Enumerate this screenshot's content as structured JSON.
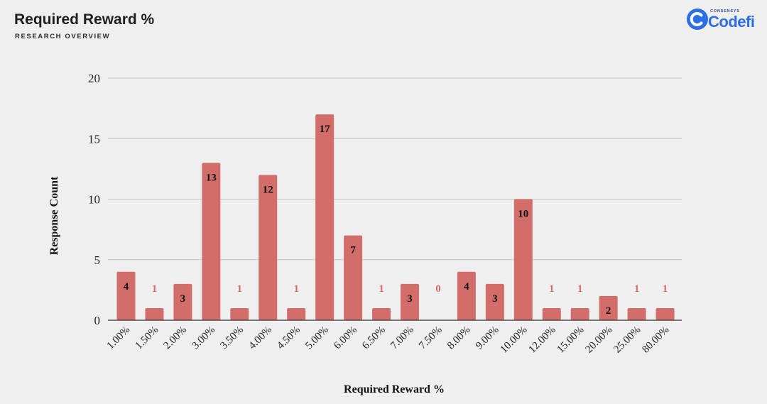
{
  "header": {
    "title": "Required Reward %",
    "subtitle": "RESEARCH OVERVIEW"
  },
  "logo": {
    "brand_small": "CONSENSYS",
    "brand": "Codefi",
    "color": "#2b6ee8"
  },
  "chart_data": {
    "type": "bar",
    "xlabel": "Required Reward %",
    "ylabel": "Response Count",
    "ylim": [
      0,
      20
    ],
    "yticks": [
      0,
      5,
      10,
      15,
      20
    ],
    "grid": true,
    "bar_color": "#d36d6a",
    "categories": [
      "1.00%",
      "1.50%",
      "2.00%",
      "3.00%",
      "3.50%",
      "4.00%",
      "4.50%",
      "5.00%",
      "6.00%",
      "6.50%",
      "7.00%",
      "7.50%",
      "8.00%",
      "9.00%",
      "10.00%",
      "12.00%",
      "15.00%",
      "20.00%",
      "25.00%",
      "80.00%"
    ],
    "values": [
      4,
      1,
      3,
      13,
      1,
      12,
      1,
      17,
      7,
      1,
      3,
      0,
      4,
      3,
      10,
      1,
      1,
      2,
      1,
      1
    ]
  }
}
